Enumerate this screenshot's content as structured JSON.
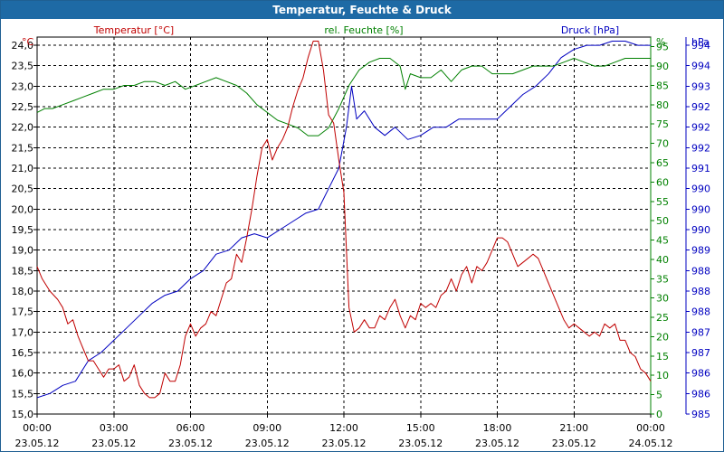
{
  "chart_data": {
    "type": "line",
    "title": "Temperatur, Feuchte & Druck",
    "series": [
      {
        "name": "Temperatur [°C]",
        "axis_label": "Temperatur [°C]",
        "unit_symbol": "°C",
        "color": "#c00000",
        "axis_side": "left",
        "ylim": [
          15.0,
          24.2
        ],
        "ticks": [
          15.0,
          15.5,
          16.0,
          16.5,
          17.0,
          17.5,
          18.0,
          18.5,
          19.0,
          19.5,
          20.0,
          20.5,
          21.0,
          21.5,
          22.0,
          22.5,
          23.0,
          23.5,
          24.0
        ],
        "tick_labels": [
          "15,0",
          "15,5",
          "16,0",
          "16,5",
          "17,0",
          "17,5",
          "18,0",
          "18,5",
          "19,0",
          "19,5",
          "20,0",
          "20,5",
          "21,0",
          "21,5",
          "22,0",
          "22,5",
          "23,0",
          "23,5",
          "24,0"
        ],
        "data": [
          [
            0.0,
            18.6
          ],
          [
            0.2,
            18.3
          ],
          [
            0.5,
            18.0
          ],
          [
            0.8,
            17.8
          ],
          [
            1.0,
            17.6
          ],
          [
            1.2,
            17.2
          ],
          [
            1.4,
            17.3
          ],
          [
            1.6,
            16.9
          ],
          [
            1.8,
            16.6
          ],
          [
            2.0,
            16.3
          ],
          [
            2.2,
            16.3
          ],
          [
            2.4,
            16.1
          ],
          [
            2.6,
            15.9
          ],
          [
            2.8,
            16.1
          ],
          [
            3.0,
            16.1
          ],
          [
            3.2,
            16.2
          ],
          [
            3.4,
            15.8
          ],
          [
            3.6,
            15.9
          ],
          [
            3.8,
            16.2
          ],
          [
            4.0,
            15.7
          ],
          [
            4.2,
            15.5
          ],
          [
            4.4,
            15.4
          ],
          [
            4.6,
            15.4
          ],
          [
            4.8,
            15.5
          ],
          [
            5.0,
            16.0
          ],
          [
            5.2,
            15.8
          ],
          [
            5.4,
            15.8
          ],
          [
            5.6,
            16.2
          ],
          [
            5.8,
            16.9
          ],
          [
            6.0,
            17.2
          ],
          [
            6.2,
            16.9
          ],
          [
            6.4,
            17.1
          ],
          [
            6.6,
            17.2
          ],
          [
            6.8,
            17.5
          ],
          [
            7.0,
            17.4
          ],
          [
            7.2,
            17.8
          ],
          [
            7.4,
            18.2
          ],
          [
            7.6,
            18.3
          ],
          [
            7.8,
            18.9
          ],
          [
            8.0,
            18.7
          ],
          [
            8.2,
            19.3
          ],
          [
            8.4,
            20.0
          ],
          [
            8.6,
            20.8
          ],
          [
            8.8,
            21.5
          ],
          [
            9.0,
            21.7
          ],
          [
            9.2,
            21.2
          ],
          [
            9.4,
            21.5
          ],
          [
            9.6,
            21.7
          ],
          [
            9.8,
            22.0
          ],
          [
            10.0,
            22.5
          ],
          [
            10.2,
            22.9
          ],
          [
            10.4,
            23.2
          ],
          [
            10.6,
            23.7
          ],
          [
            10.8,
            24.1
          ],
          [
            11.0,
            24.1
          ],
          [
            11.2,
            23.4
          ],
          [
            11.4,
            22.3
          ],
          [
            11.6,
            22.1
          ],
          [
            11.8,
            21.2
          ],
          [
            12.0,
            20.4
          ],
          [
            12.2,
            17.6
          ],
          [
            12.4,
            17.0
          ],
          [
            12.6,
            17.1
          ],
          [
            12.8,
            17.3
          ],
          [
            13.0,
            17.1
          ],
          [
            13.2,
            17.1
          ],
          [
            13.4,
            17.4
          ],
          [
            13.6,
            17.3
          ],
          [
            13.8,
            17.6
          ],
          [
            14.0,
            17.8
          ],
          [
            14.2,
            17.4
          ],
          [
            14.4,
            17.1
          ],
          [
            14.6,
            17.4
          ],
          [
            14.8,
            17.3
          ],
          [
            15.0,
            17.7
          ],
          [
            15.2,
            17.6
          ],
          [
            15.4,
            17.7
          ],
          [
            15.6,
            17.6
          ],
          [
            15.8,
            17.9
          ],
          [
            16.0,
            18.0
          ],
          [
            16.2,
            18.3
          ],
          [
            16.4,
            18.0
          ],
          [
            16.6,
            18.4
          ],
          [
            16.8,
            18.6
          ],
          [
            17.0,
            18.2
          ],
          [
            17.2,
            18.6
          ],
          [
            17.4,
            18.5
          ],
          [
            17.6,
            18.7
          ],
          [
            17.8,
            19.0
          ],
          [
            18.0,
            19.3
          ],
          [
            18.2,
            19.3
          ],
          [
            18.4,
            19.2
          ],
          [
            18.6,
            18.9
          ],
          [
            18.8,
            18.6
          ],
          [
            19.0,
            18.7
          ],
          [
            19.2,
            18.8
          ],
          [
            19.4,
            18.9
          ],
          [
            19.6,
            18.8
          ],
          [
            19.8,
            18.5
          ],
          [
            20.0,
            18.2
          ],
          [
            20.2,
            17.9
          ],
          [
            20.4,
            17.6
          ],
          [
            20.6,
            17.3
          ],
          [
            20.8,
            17.1
          ],
          [
            21.0,
            17.2
          ],
          [
            21.2,
            17.1
          ],
          [
            21.4,
            17.0
          ],
          [
            21.6,
            16.9
          ],
          [
            21.8,
            17.0
          ],
          [
            22.0,
            16.9
          ],
          [
            22.2,
            17.2
          ],
          [
            22.4,
            17.1
          ],
          [
            22.6,
            17.2
          ],
          [
            22.8,
            16.8
          ],
          [
            23.0,
            16.8
          ],
          [
            23.2,
            16.5
          ],
          [
            23.4,
            16.4
          ],
          [
            23.6,
            16.1
          ],
          [
            23.8,
            16.0
          ],
          [
            24.0,
            15.8
          ]
        ]
      },
      {
        "name": "rel. Feuchte [%]",
        "axis_label": "rel. Feuchte [%]",
        "unit_symbol": "%",
        "color": "#008000",
        "axis_side": "right",
        "ylim": [
          0,
          97.5
        ],
        "ticks": [
          0,
          5,
          10,
          15,
          20,
          25,
          30,
          35,
          40,
          45,
          50,
          55,
          60,
          65,
          70,
          75,
          80,
          85,
          90,
          95
        ],
        "tick_labels": [
          "0",
          "5",
          "10",
          "15",
          "20",
          "25",
          "30",
          "35",
          "40",
          "45",
          "50",
          "55",
          "60",
          "65",
          "70",
          "75",
          "80",
          "85",
          "90",
          "95"
        ],
        "data": [
          [
            0.0,
            78
          ],
          [
            0.3,
            79
          ],
          [
            0.6,
            79
          ],
          [
            1.0,
            80
          ],
          [
            1.4,
            81
          ],
          [
            1.8,
            82
          ],
          [
            2.2,
            83
          ],
          [
            2.6,
            84
          ],
          [
            3.0,
            84
          ],
          [
            3.4,
            85
          ],
          [
            3.8,
            85
          ],
          [
            4.2,
            86
          ],
          [
            4.6,
            86
          ],
          [
            5.0,
            85
          ],
          [
            5.4,
            86
          ],
          [
            5.8,
            84
          ],
          [
            6.2,
            85
          ],
          [
            6.6,
            86
          ],
          [
            7.0,
            87
          ],
          [
            7.4,
            86
          ],
          [
            7.8,
            85
          ],
          [
            8.2,
            83
          ],
          [
            8.6,
            80
          ],
          [
            9.0,
            78
          ],
          [
            9.4,
            76
          ],
          [
            9.8,
            75
          ],
          [
            10.2,
            74
          ],
          [
            10.6,
            72
          ],
          [
            11.0,
            72
          ],
          [
            11.4,
            74
          ],
          [
            11.8,
            79
          ],
          [
            12.2,
            85
          ],
          [
            12.6,
            89
          ],
          [
            13.0,
            91
          ],
          [
            13.4,
            92
          ],
          [
            13.8,
            92
          ],
          [
            14.2,
            90
          ],
          [
            14.4,
            84
          ],
          [
            14.6,
            88
          ],
          [
            15.0,
            87
          ],
          [
            15.4,
            87
          ],
          [
            15.8,
            89
          ],
          [
            16.2,
            86
          ],
          [
            16.6,
            89
          ],
          [
            17.0,
            90
          ],
          [
            17.4,
            90
          ],
          [
            17.8,
            88
          ],
          [
            18.2,
            88
          ],
          [
            18.6,
            88
          ],
          [
            19.0,
            89
          ],
          [
            19.4,
            90
          ],
          [
            19.8,
            90
          ],
          [
            20.2,
            90
          ],
          [
            20.6,
            91
          ],
          [
            21.0,
            92
          ],
          [
            21.4,
            91
          ],
          [
            21.8,
            90
          ],
          [
            22.2,
            90
          ],
          [
            22.6,
            91
          ],
          [
            23.0,
            92
          ],
          [
            23.4,
            92
          ],
          [
            24.0,
            92
          ]
        ]
      },
      {
        "name": "Druck [hPa]",
        "axis_label": "Druck [hPa]",
        "unit_symbol": "hPa",
        "color": "#0000c0",
        "axis_side": "right",
        "ylim": [
          985.0,
          994.2
        ],
        "ticks": [
          985.0,
          985.5,
          986.0,
          986.5,
          987.0,
          987.5,
          988.0,
          988.5,
          989.0,
          989.5,
          990.0,
          990.5,
          991.0,
          991.5,
          992.0,
          992.5,
          993.0,
          993.5,
          994.0
        ],
        "tick_labels": [
          "985",
          "986",
          "986",
          "987",
          "987",
          "988",
          "988",
          "988",
          "989",
          "990",
          "990",
          "990",
          "991",
          "992",
          "992",
          "992",
          "993",
          "994",
          "994"
        ],
        "data": [
          [
            0.0,
            985.4
          ],
          [
            0.5,
            985.5
          ],
          [
            1.0,
            985.7
          ],
          [
            1.5,
            985.8
          ],
          [
            2.0,
            986.3
          ],
          [
            2.5,
            986.5
          ],
          [
            3.0,
            986.8
          ],
          [
            3.5,
            987.1
          ],
          [
            4.0,
            987.4
          ],
          [
            4.5,
            987.7
          ],
          [
            5.0,
            987.9
          ],
          [
            5.5,
            988.0
          ],
          [
            6.0,
            988.3
          ],
          [
            6.5,
            988.5
          ],
          [
            7.0,
            988.9
          ],
          [
            7.5,
            989.0
          ],
          [
            8.0,
            989.3
          ],
          [
            8.5,
            989.4
          ],
          [
            9.0,
            989.3
          ],
          [
            9.5,
            989.5
          ],
          [
            10.0,
            989.7
          ],
          [
            10.5,
            989.9
          ],
          [
            11.0,
            990.0
          ],
          [
            11.4,
            990.5
          ],
          [
            11.8,
            991.0
          ],
          [
            12.1,
            992.0
          ],
          [
            12.3,
            993.0
          ],
          [
            12.5,
            992.2
          ],
          [
            12.8,
            992.4
          ],
          [
            13.2,
            992.0
          ],
          [
            13.6,
            991.8
          ],
          [
            14.0,
            992.0
          ],
          [
            14.5,
            991.7
          ],
          [
            15.0,
            991.8
          ],
          [
            15.5,
            992.0
          ],
          [
            16.0,
            992.0
          ],
          [
            16.5,
            992.2
          ],
          [
            17.0,
            992.2
          ],
          [
            17.5,
            992.2
          ],
          [
            18.0,
            992.2
          ],
          [
            18.5,
            992.5
          ],
          [
            19.0,
            992.8
          ],
          [
            19.5,
            993.0
          ],
          [
            20.0,
            993.3
          ],
          [
            20.5,
            993.7
          ],
          [
            21.0,
            993.9
          ],
          [
            21.5,
            994.0
          ],
          [
            22.0,
            994.0
          ],
          [
            22.5,
            994.1
          ],
          [
            23.0,
            994.1
          ],
          [
            23.5,
            994.0
          ],
          [
            24.0,
            994.0
          ]
        ]
      }
    ],
    "x_axis": {
      "range_hours": [
        0,
        24
      ],
      "ticks": [
        0,
        3,
        6,
        9,
        12,
        15,
        18,
        21,
        24
      ],
      "time_labels": [
        "00:00",
        "03:00",
        "06:00",
        "09:00",
        "12:00",
        "15:00",
        "18:00",
        "21:00",
        "00:00"
      ],
      "date_labels": [
        "23.05.12",
        "23.05.12",
        "23.05.12",
        "23.05.12",
        "23.05.12",
        "23.05.12",
        "23.05.12",
        "23.05.12",
        "24.05.12"
      ]
    },
    "grid": true
  },
  "colors": {
    "title_bar": "#1e6aa5",
    "axis": "#000000",
    "grid": "#000000"
  }
}
